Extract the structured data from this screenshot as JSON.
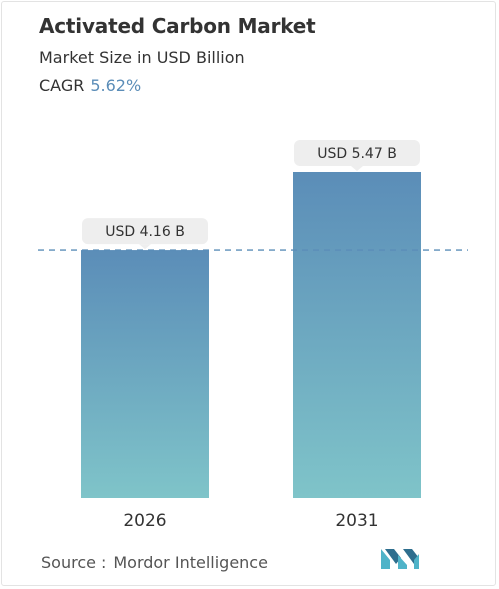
{
  "header": {
    "title": "Activated Carbon Market",
    "subtitle": "Market Size in USD Billion",
    "cagr_label": "CAGR",
    "cagr_value": "5.62%"
  },
  "chart_data": {
    "type": "bar",
    "categories": [
      "2026",
      "2031"
    ],
    "values": [
      4.16,
      5.47
    ],
    "data_labels": [
      "USD 4.16 B",
      "USD 5.47 B"
    ],
    "title": "Activated Carbon Market",
    "subtitle": "Market Size in USD Billion",
    "xlabel": "",
    "ylabel": "",
    "ylim": [
      0,
      5.47
    ],
    "grid": false,
    "reference_line_value": 4.16,
    "colors": {
      "bar_top": "#5b8db8",
      "bar_bottom": "#7fc4c9",
      "label_bg": "#eeeeee",
      "reference_line": "#5b8db8"
    }
  },
  "footer": {
    "source_label": "Source",
    "source_sep": ":",
    "source_name": "Mordor Intelligence",
    "logo_icon": "mordor-intelligence-logo-icon"
  }
}
